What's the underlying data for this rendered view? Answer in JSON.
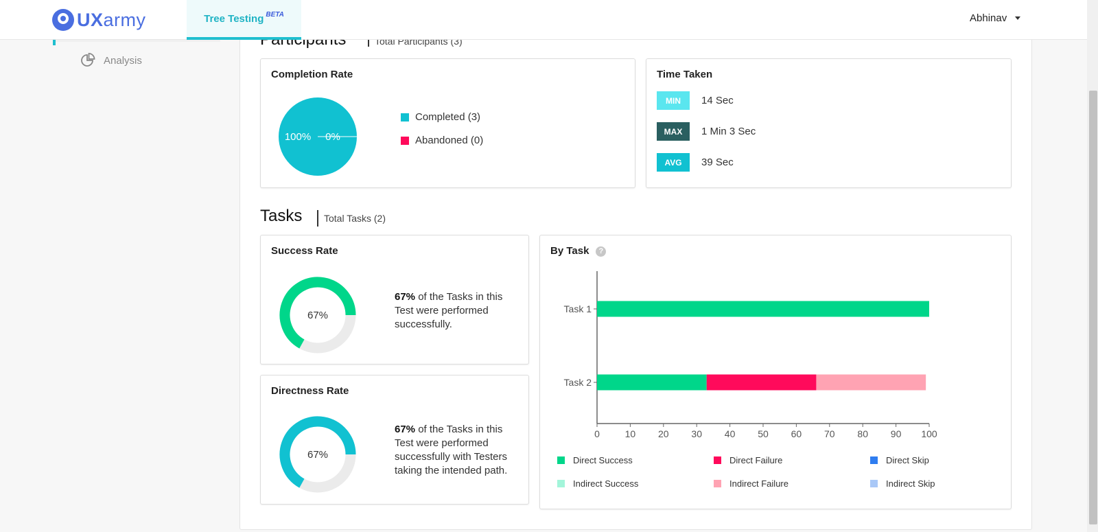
{
  "header": {
    "logo_bold": "UX",
    "logo_light": "army",
    "tab_label": "Tree Testing",
    "tab_badge": "BETA",
    "user_name": "Abhinav"
  },
  "sidebar": {
    "analysis_label": "Analysis"
  },
  "participants": {
    "title": "Participants",
    "total": "Total Participants (3)"
  },
  "completion": {
    "title": "Completion Rate",
    "completed_pct_label": "100%",
    "abandoned_pct_label": "0%",
    "completed_label": "Completed (3)",
    "abandoned_label": "Abandoned (0)",
    "colors": {
      "completed": "#11c1d1",
      "abandoned": "#ff0a5b"
    }
  },
  "time": {
    "title": "Time Taken",
    "min_label": "MIN",
    "min_value": "14 Sec",
    "max_label": "MAX",
    "max_value": "1 Min 3 Sec",
    "avg_label": "AVG",
    "avg_value": "39 Sec",
    "colors": {
      "min": "#5ae6ef",
      "max": "#2a5f60",
      "avg": "#11c1d1"
    }
  },
  "tasks": {
    "title": "Tasks",
    "total": "Total Tasks (2)"
  },
  "success": {
    "title": "Success Rate",
    "value": 67,
    "value_label": "67%",
    "text_bold": "67%",
    "text_rest": " of the Tasks in this Test were performed successfully.",
    "color": "#00d68a"
  },
  "directness": {
    "title": "Directness Rate",
    "value": 67,
    "value_label": "67%",
    "text_bold": "67%",
    "text_rest": " of the Tasks in this Test were performed successfully with Testers taking the intended path.",
    "color": "#11c1d1"
  },
  "by_task": {
    "title": "By Task",
    "help_glyph": "?"
  },
  "chart_data": {
    "type": "bar",
    "orientation": "horizontal",
    "stacked": true,
    "title": "By Task",
    "categories": [
      "Task 1",
      "Task 2"
    ],
    "xlim": [
      0,
      100
    ],
    "xticks": [
      "0",
      "10",
      "20",
      "30",
      "40",
      "50",
      "60",
      "70",
      "80",
      "90",
      "100"
    ],
    "series": [
      {
        "name": "Direct Success",
        "color": "#00d68a",
        "values": [
          100,
          33
        ]
      },
      {
        "name": "Direct Failure",
        "color": "#ff0a5b",
        "values": [
          0,
          33
        ]
      },
      {
        "name": "Direct Skip",
        "color": "#2f7df0",
        "values": [
          0,
          0
        ]
      },
      {
        "name": "Indirect Success",
        "color": "#a3f5da",
        "values": [
          0,
          0
        ]
      },
      {
        "name": "Indirect Failure",
        "color": "#ffa3b3",
        "values": [
          0,
          33
        ]
      },
      {
        "name": "Indirect Skip",
        "color": "#a9c8f7",
        "values": [
          0,
          0
        ]
      }
    ]
  }
}
